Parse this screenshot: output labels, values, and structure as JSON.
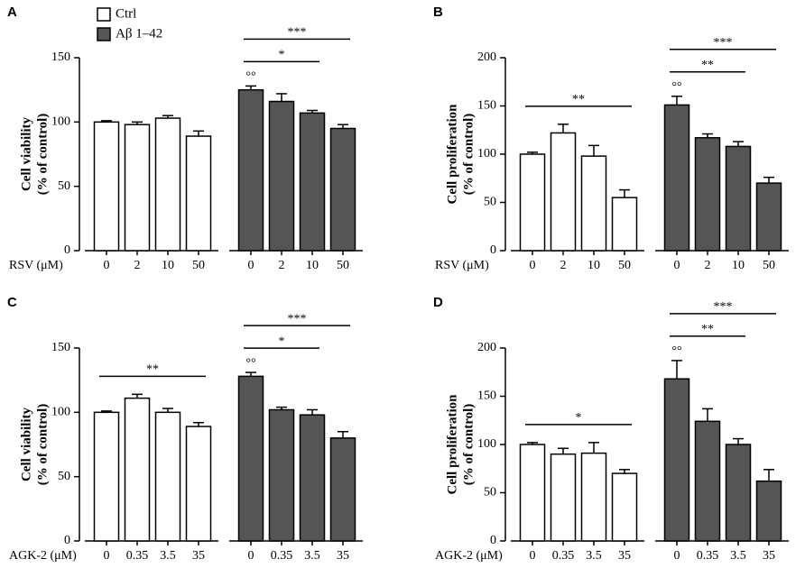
{
  "chart_data": [
    {
      "type": "bar",
      "panel": "A",
      "ylabel": [
        "Cell viability",
        "(% of control)"
      ],
      "xlabel": "RSV (μM)",
      "categories": [
        "0",
        "2",
        "10",
        "50"
      ],
      "ylim": [
        0,
        150
      ],
      "yticks": [
        0,
        50,
        100,
        150
      ],
      "legend": true,
      "series": [
        {
          "name": "Ctrl",
          "color": "#ffffff",
          "values": [
            100,
            98,
            103,
            89
          ],
          "errors": [
            1,
            2,
            2,
            4
          ]
        },
        {
          "name": "Aβ 1–42",
          "color": "#555555",
          "values": [
            125,
            116,
            107,
            95
          ],
          "errors": [
            3,
            6,
            2,
            3
          ]
        }
      ],
      "marks": [
        {
          "text": "°°",
          "series": 1,
          "index": 0
        }
      ],
      "comparisons": [
        {
          "text": "*",
          "series": 1,
          "from": 0,
          "to": 2
        },
        {
          "text": "***",
          "series": 1,
          "from": 0,
          "to": 3
        }
      ]
    },
    {
      "type": "bar",
      "panel": "B",
      "ylabel": [
        "Cell proliferation",
        "(% of control)"
      ],
      "xlabel": "RSV (μM)",
      "categories": [
        "0",
        "2",
        "10",
        "50"
      ],
      "ylim": [
        0,
        200
      ],
      "yticks": [
        0,
        50,
        100,
        150,
        200
      ],
      "legend": false,
      "series": [
        {
          "name": "Ctrl",
          "color": "#ffffff",
          "values": [
            100,
            122,
            98,
            55
          ],
          "errors": [
            2,
            9,
            11,
            8
          ]
        },
        {
          "name": "Aβ 1–42",
          "color": "#555555",
          "values": [
            151,
            117,
            108,
            70
          ],
          "errors": [
            9,
            4,
            5,
            6
          ]
        }
      ],
      "marks": [
        {
          "text": "°°",
          "series": 1,
          "index": 0
        }
      ],
      "comparisons": [
        {
          "text": "**",
          "series": 0,
          "from": 0,
          "to": 3
        },
        {
          "text": "**",
          "series": 1,
          "from": 0,
          "to": 2
        },
        {
          "text": "***",
          "series": 1,
          "from": 0,
          "to": 3
        }
      ]
    },
    {
      "type": "bar",
      "panel": "C",
      "ylabel": [
        "Cell viability",
        "(% of control)"
      ],
      "xlabel": "AGK-2 (μM)",
      "categories": [
        "0",
        "0.35",
        "3.5",
        "35"
      ],
      "ylim": [
        0,
        150
      ],
      "yticks": [
        0,
        50,
        100,
        150
      ],
      "legend": false,
      "series": [
        {
          "name": "Ctrl",
          "color": "#ffffff",
          "values": [
            100,
            111,
            100,
            89
          ],
          "errors": [
            1,
            3,
            3,
            3
          ]
        },
        {
          "name": "Aβ 1–42",
          "color": "#555555",
          "values": [
            128,
            102,
            98,
            80
          ],
          "errors": [
            3,
            2,
            4,
            5
          ]
        }
      ],
      "marks": [
        {
          "text": "°°",
          "series": 1,
          "index": 0
        }
      ],
      "comparisons": [
        {
          "text": "**",
          "series": 0,
          "from": 0,
          "to": 3
        },
        {
          "text": "*",
          "series": 1,
          "from": 0,
          "to": 2
        },
        {
          "text": "***",
          "series": 1,
          "from": 0,
          "to": 3
        }
      ]
    },
    {
      "type": "bar",
      "panel": "D",
      "ylabel": [
        "Cell proliferation",
        "(% of control)"
      ],
      "xlabel": "AGK-2 (μM)",
      "categories": [
        "0",
        "0.35",
        "3.5",
        "35"
      ],
      "ylim": [
        0,
        200
      ],
      "yticks": [
        0,
        50,
        100,
        150,
        200
      ],
      "legend": false,
      "series": [
        {
          "name": "Ctrl",
          "color": "#ffffff",
          "values": [
            100,
            90,
            91,
            70
          ],
          "errors": [
            2,
            6,
            11,
            4
          ]
        },
        {
          "name": "Aβ 1–42",
          "color": "#555555",
          "values": [
            168,
            124,
            100,
            62
          ],
          "errors": [
            19,
            13,
            6,
            12
          ]
        }
      ],
      "marks": [
        {
          "text": "°°",
          "series": 1,
          "index": 0
        }
      ],
      "comparisons": [
        {
          "text": "*",
          "series": 0,
          "from": 0,
          "to": 3
        },
        {
          "text": "**",
          "series": 1,
          "from": 0,
          "to": 2
        },
        {
          "text": "***",
          "series": 1,
          "from": 0,
          "to": 3
        }
      ]
    }
  ]
}
